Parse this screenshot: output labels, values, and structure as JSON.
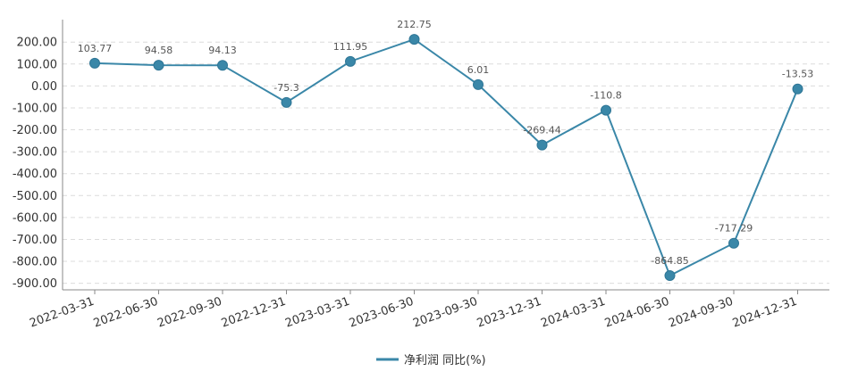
{
  "chart_data": {
    "type": "line",
    "title": "",
    "xlabel": "",
    "ylabel": "",
    "categories": [
      "2022-03-31",
      "2022-06-30",
      "2022-09-30",
      "2022-12-31",
      "2023-03-31",
      "2023-06-30",
      "2023-09-30",
      "2023-12-31",
      "2024-03-31",
      "2024-06-30",
      "2024-09-30",
      "2024-12-31"
    ],
    "series": [
      {
        "name": "净利润 同比(%)",
        "values": [
          103.77,
          94.58,
          94.13,
          -75.3,
          111.95,
          212.75,
          6.01,
          -269.44,
          -110.8,
          -864.85,
          -717.29,
          -13.53
        ],
        "labels": [
          "103.77",
          "94.58",
          "94.13",
          "-75.3",
          "111.95",
          "212.75",
          "6.01",
          "-269.44",
          "-110.8",
          "-864.85",
          "-717.29",
          "-13.53"
        ],
        "color": "#3a87a8"
      }
    ],
    "yticks": [
      200,
      100,
      0,
      -100,
      -200,
      -300,
      -400,
      -500,
      -600,
      -700,
      -800,
      -900
    ],
    "ytick_labels": [
      "200.00",
      "100.00",
      "0.00",
      "-100.00",
      "-200.00",
      "-300.00",
      "-400.00",
      "-500.00",
      "-600.00",
      "-700.00",
      "-800.00",
      "-900.00"
    ],
    "ylim": [
      -930,
      270
    ],
    "grid": true,
    "legend_position": "bottom-center"
  }
}
